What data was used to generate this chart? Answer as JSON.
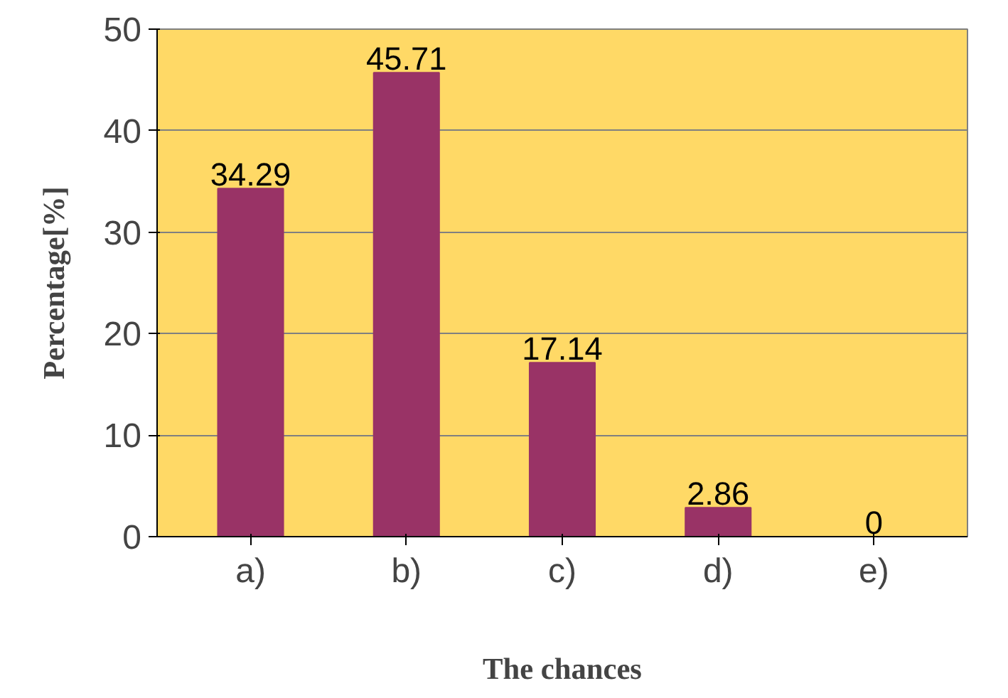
{
  "chart_data": {
    "type": "bar",
    "xlabel": "The chances",
    "ylabel": "Percentage[%]",
    "categories": [
      "a)",
      "b)",
      "c)",
      "d)",
      "e)"
    ],
    "values": [
      34.29,
      45.71,
      17.14,
      2.86,
      0
    ],
    "color": "#993366",
    "ylim": [
      0,
      50
    ],
    "yticks": [
      0,
      10,
      20,
      30,
      40,
      50
    ],
    "grid": "y",
    "data_labels": true
  }
}
